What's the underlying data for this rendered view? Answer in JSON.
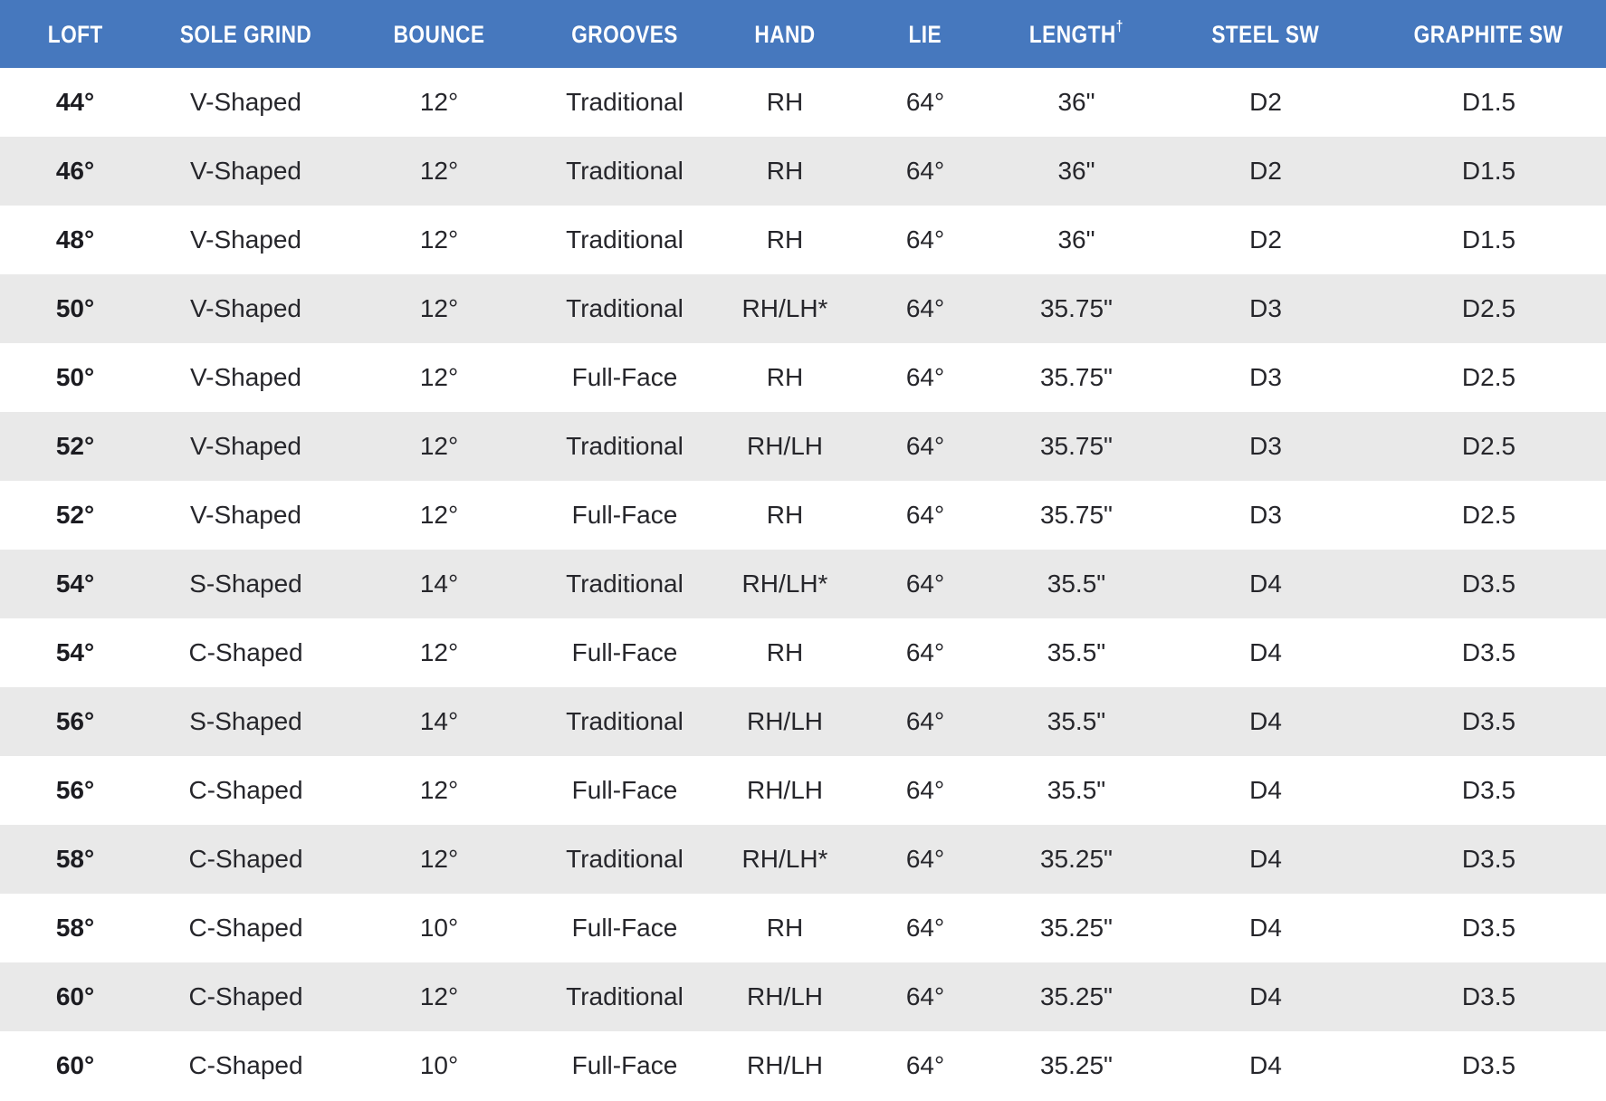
{
  "colors": {
    "header_bg": "#4678BE",
    "header_text": "#FFFFFF",
    "row_bg": "#FFFFFF",
    "row_alt_bg": "#E9E9E9",
    "body_text": "#26262B",
    "loft_text": "#1C1C21"
  },
  "table": {
    "columns": [
      {
        "label": "LOFT",
        "sup": ""
      },
      {
        "label": "SOLE GRIND",
        "sup": ""
      },
      {
        "label": "BOUNCE",
        "sup": ""
      },
      {
        "label": "GROOVES",
        "sup": ""
      },
      {
        "label": "HAND",
        "sup": ""
      },
      {
        "label": "LIE",
        "sup": ""
      },
      {
        "label": "LENGTH",
        "sup": "†"
      },
      {
        "label": "STEEL SW",
        "sup": ""
      },
      {
        "label": "GRAPHITE SW",
        "sup": ""
      }
    ],
    "rows": [
      [
        "44°",
        "V-Shaped",
        "12°",
        "Traditional",
        "RH",
        "64°",
        "36\"",
        "D2",
        "D1.5"
      ],
      [
        "46°",
        "V-Shaped",
        "12°",
        "Traditional",
        "RH",
        "64°",
        "36\"",
        "D2",
        "D1.5"
      ],
      [
        "48°",
        "V-Shaped",
        "12°",
        "Traditional",
        "RH",
        "64°",
        "36\"",
        "D2",
        "D1.5"
      ],
      [
        "50°",
        "V-Shaped",
        "12°",
        "Traditional",
        "RH/LH*",
        "64°",
        "35.75\"",
        "D3",
        "D2.5"
      ],
      [
        "50°",
        "V-Shaped",
        "12°",
        "Full-Face",
        "RH",
        "64°",
        "35.75\"",
        "D3",
        "D2.5"
      ],
      [
        "52°",
        "V-Shaped",
        "12°",
        "Traditional",
        "RH/LH",
        "64°",
        "35.75\"",
        "D3",
        "D2.5"
      ],
      [
        "52°",
        "V-Shaped",
        "12°",
        "Full-Face",
        "RH",
        "64°",
        "35.75\"",
        "D3",
        "D2.5"
      ],
      [
        "54°",
        "S-Shaped",
        "14°",
        "Traditional",
        "RH/LH*",
        "64°",
        "35.5\"",
        "D4",
        "D3.5"
      ],
      [
        "54°",
        "C-Shaped",
        "12°",
        "Full-Face",
        "RH",
        "64°",
        "35.5\"",
        "D4",
        "D3.5"
      ],
      [
        "56°",
        "S-Shaped",
        "14°",
        "Traditional",
        "RH/LH",
        "64°",
        "35.5\"",
        "D4",
        "D3.5"
      ],
      [
        "56°",
        "C-Shaped",
        "12°",
        "Full-Face",
        "RH/LH",
        "64°",
        "35.5\"",
        "D4",
        "D3.5"
      ],
      [
        "58°",
        "C-Shaped",
        "12°",
        "Traditional",
        "RH/LH*",
        "64°",
        "35.25\"",
        "D4",
        "D3.5"
      ],
      [
        "58°",
        "C-Shaped",
        "10°",
        "Full-Face",
        "RH",
        "64°",
        "35.25\"",
        "D4",
        "D3.5"
      ],
      [
        "60°",
        "C-Shaped",
        "12°",
        "Traditional",
        "RH/LH",
        "64°",
        "35.25\"",
        "D4",
        "D3.5"
      ],
      [
        "60°",
        "C-Shaped",
        "10°",
        "Full-Face",
        "RH/LH",
        "64°",
        "35.25\"",
        "D4",
        "D3.5"
      ]
    ]
  }
}
